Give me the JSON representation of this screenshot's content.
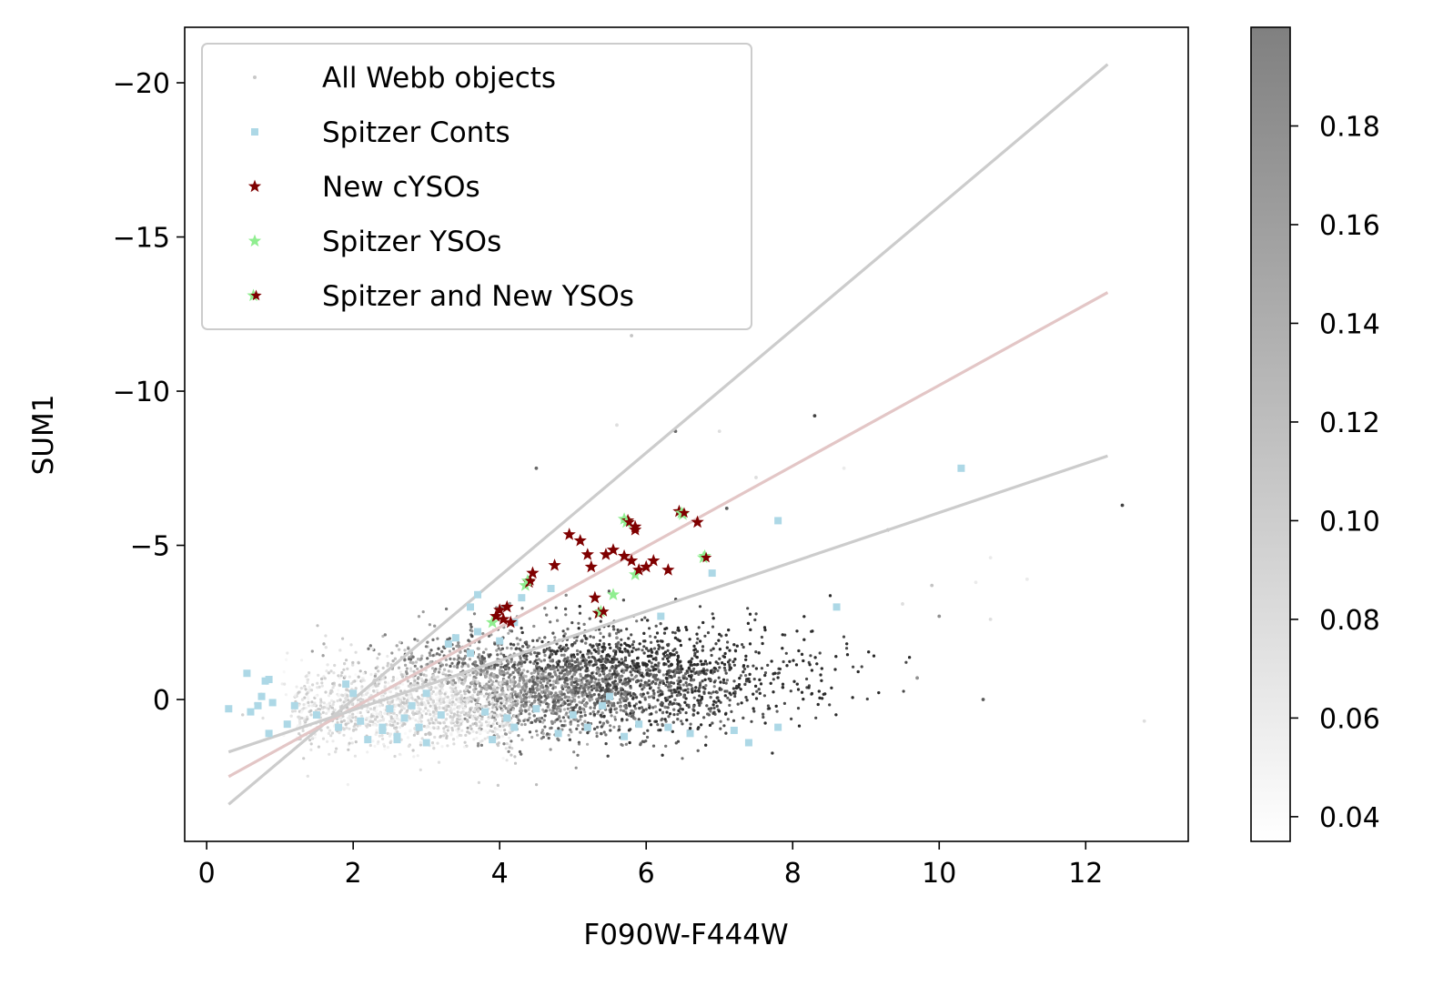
{
  "chart_data": {
    "type": "scatter",
    "xlabel": "F090W-F444W",
    "ylabel": "SUM1",
    "xlim": [
      -0.3,
      13.4
    ],
    "ylim": [
      4.6,
      -21.8
    ],
    "y_inverted": true,
    "xticks": [
      0,
      2,
      4,
      6,
      8,
      10,
      12
    ],
    "yticks": [
      -20,
      -15,
      -10,
      -5,
      0
    ],
    "grid": false,
    "legend_position": "upper-left",
    "colorbar": {
      "label": "",
      "range": [
        0.035,
        0.2
      ],
      "ticks": [
        0.04,
        0.06,
        0.08,
        0.1,
        0.12,
        0.14,
        0.16,
        0.18
      ],
      "tick_labels": [
        "0.04",
        "0.06",
        "0.08",
        "0.10",
        "0.12",
        "0.14",
        "0.16",
        "0.18"
      ],
      "colormap": "greys"
    },
    "legend": [
      {
        "label": "All Webb objects",
        "marker": "dot",
        "color": "#c8c8c8"
      },
      {
        "label": "Spitzer Conts",
        "marker": "square",
        "color": "#add8e6"
      },
      {
        "label": "New cYSOs",
        "marker": "star",
        "color": "#7f0000"
      },
      {
        "label": "Spitzer YSOs",
        "marker": "star",
        "color": "#90ee90"
      },
      {
        "label": "Spitzer and New YSOs",
        "marker": "star-dual",
        "color": "#7f0000",
        "color2": "#90ee90"
      }
    ],
    "lines": [
      {
        "color": "#cccccc",
        "x": [
          0.3,
          12.3
        ],
        "y": [
          3.4,
          -20.6
        ]
      },
      {
        "color": "#e3c6c6",
        "x": [
          0.3,
          12.3
        ],
        "y": [
          2.5,
          -13.2
        ]
      },
      {
        "color": "#cccccc",
        "x": [
          0.3,
          12.3
        ],
        "y": [
          1.7,
          -7.9
        ]
      }
    ],
    "webb_cloud": {
      "description_of_distribution": "dense cloud centered near x 3-7, y -2 to 1",
      "sample_outliers": [
        {
          "x": 5.8,
          "y": -11.8,
          "c": 0.08
        },
        {
          "x": 5.6,
          "y": -8.9,
          "c": 0.06
        },
        {
          "x": 6.4,
          "y": -8.7,
          "c": 0.15
        },
        {
          "x": 7.0,
          "y": -8.7,
          "c": 0.06
        },
        {
          "x": 8.3,
          "y": -9.2,
          "c": 0.18
        },
        {
          "x": 4.5,
          "y": -7.5,
          "c": 0.15
        },
        {
          "x": 7.5,
          "y": -7.2,
          "c": 0.06
        },
        {
          "x": 8.7,
          "y": -7.5,
          "c": 0.05
        },
        {
          "x": 12.5,
          "y": -6.3,
          "c": 0.18
        },
        {
          "x": 9.3,
          "y": -5.5,
          "c": 0.12
        },
        {
          "x": 10.7,
          "y": -4.6,
          "c": 0.05
        },
        {
          "x": 11.2,
          "y": -3.9,
          "c": 0.05
        },
        {
          "x": 10.5,
          "y": -3.8,
          "c": 0.05
        },
        {
          "x": 9.9,
          "y": -3.7,
          "c": 0.08
        },
        {
          "x": 9.5,
          "y": -3.1,
          "c": 0.06
        },
        {
          "x": 10.0,
          "y": -2.7,
          "c": 0.12
        },
        {
          "x": 10.7,
          "y": -2.6,
          "c": 0.06
        },
        {
          "x": 12.8,
          "y": 0.7,
          "c": 0.06
        },
        {
          "x": 10.6,
          "y": 0.0,
          "c": 0.16
        },
        {
          "x": 9.7,
          "y": -0.7,
          "c": 0.12
        },
        {
          "x": 7.1,
          "y": -6.2,
          "c": 0.16
        },
        {
          "x": 5.6,
          "y": -2.0,
          "c": 0.12
        }
      ]
    },
    "spitzer_conts": [
      {
        "x": 0.3,
        "y": 0.3
      },
      {
        "x": 0.55,
        "y": -0.85
      },
      {
        "x": 0.6,
        "y": 0.4
      },
      {
        "x": 0.7,
        "y": 0.2
      },
      {
        "x": 0.75,
        "y": -0.1
      },
      {
        "x": 0.8,
        "y": -0.6
      },
      {
        "x": 0.85,
        "y": -0.65
      },
      {
        "x": 0.85,
        "y": 1.1
      },
      {
        "x": 0.9,
        "y": 0.1
      },
      {
        "x": 1.2,
        "y": 0.2
      },
      {
        "x": 1.5,
        "y": 0.5
      },
      {
        "x": 1.8,
        "y": 0.9
      },
      {
        "x": 1.9,
        "y": -0.5
      },
      {
        "x": 2.0,
        "y": -0.2
      },
      {
        "x": 2.1,
        "y": 0.7
      },
      {
        "x": 2.2,
        "y": 1.3
      },
      {
        "x": 2.4,
        "y": 0.9
      },
      {
        "x": 2.5,
        "y": 0.3
      },
      {
        "x": 2.6,
        "y": 1.2
      },
      {
        "x": 2.7,
        "y": 0.6
      },
      {
        "x": 2.8,
        "y": 0.2
      },
      {
        "x": 2.9,
        "y": 0.9
      },
      {
        "x": 3.0,
        "y": -0.2
      },
      {
        "x": 3.0,
        "y": 1.4
      },
      {
        "x": 3.2,
        "y": 0.5
      },
      {
        "x": 3.3,
        "y": -1.8
      },
      {
        "x": 3.4,
        "y": -2.0
      },
      {
        "x": 3.6,
        "y": -1.5
      },
      {
        "x": 3.6,
        "y": -3.0
      },
      {
        "x": 3.7,
        "y": -2.2
      },
      {
        "x": 3.7,
        "y": -3.4
      },
      {
        "x": 3.8,
        "y": 0.4
      },
      {
        "x": 3.9,
        "y": 1.3
      },
      {
        "x": 4.0,
        "y": -1.9
      },
      {
        "x": 4.1,
        "y": 0.6
      },
      {
        "x": 4.2,
        "y": -2.5
      },
      {
        "x": 4.2,
        "y": 0.9
      },
      {
        "x": 4.3,
        "y": -3.3
      },
      {
        "x": 4.5,
        "y": 0.3
      },
      {
        "x": 4.7,
        "y": -3.6
      },
      {
        "x": 4.8,
        "y": 1.1
      },
      {
        "x": 5.0,
        "y": 0.5
      },
      {
        "x": 5.2,
        "y": 0.9
      },
      {
        "x": 5.4,
        "y": 0.2
      },
      {
        "x": 5.5,
        "y": -0.1
      },
      {
        "x": 5.7,
        "y": 1.2
      },
      {
        "x": 5.9,
        "y": 0.8
      },
      {
        "x": 6.2,
        "y": -2.7
      },
      {
        "x": 6.3,
        "y": 0.9
      },
      {
        "x": 6.6,
        "y": 1.1
      },
      {
        "x": 6.9,
        "y": -4.1
      },
      {
        "x": 7.2,
        "y": 1.0
      },
      {
        "x": 7.4,
        "y": 1.4
      },
      {
        "x": 7.8,
        "y": 0.9
      },
      {
        "x": 7.8,
        "y": -5.8
      },
      {
        "x": 8.6,
        "y": -3.0
      },
      {
        "x": 10.3,
        "y": -7.5
      },
      {
        "x": 2.4,
        "y": 1.0
      },
      {
        "x": 2.6,
        "y": 1.3
      },
      {
        "x": 1.1,
        "y": 0.8
      }
    ],
    "new_cysos": [
      {
        "x": 3.95,
        "y": -2.7
      },
      {
        "x": 4.0,
        "y": -2.9
      },
      {
        "x": 4.1,
        "y": -3.0
      },
      {
        "x": 4.15,
        "y": -2.5
      },
      {
        "x": 4.4,
        "y": -3.8
      },
      {
        "x": 4.45,
        "y": -4.1
      },
      {
        "x": 4.75,
        "y": -4.35
      },
      {
        "x": 4.95,
        "y": -5.35
      },
      {
        "x": 5.1,
        "y": -5.15
      },
      {
        "x": 5.2,
        "y": -4.7
      },
      {
        "x": 5.25,
        "y": -4.3
      },
      {
        "x": 5.3,
        "y": -3.3
      },
      {
        "x": 5.35,
        "y": -2.8
      },
      {
        "x": 5.45,
        "y": -4.7
      },
      {
        "x": 5.55,
        "y": -4.85
      },
      {
        "x": 5.7,
        "y": -4.65
      },
      {
        "x": 5.75,
        "y": -5.8
      },
      {
        "x": 5.8,
        "y": -4.5
      },
      {
        "x": 5.85,
        "y": -5.6
      },
      {
        "x": 5.9,
        "y": -4.2
      },
      {
        "x": 6.0,
        "y": -4.3
      },
      {
        "x": 6.1,
        "y": -4.5
      },
      {
        "x": 6.3,
        "y": -4.2
      },
      {
        "x": 6.45,
        "y": -6.1
      },
      {
        "x": 6.7,
        "y": -5.75
      },
      {
        "x": 5.85,
        "y": -5.5
      },
      {
        "x": 4.05,
        "y": -2.6
      }
    ],
    "spitzer_ysos": [
      {
        "x": 3.9,
        "y": -2.5
      },
      {
        "x": 4.35,
        "y": -3.7
      },
      {
        "x": 5.35,
        "y": -2.8
      },
      {
        "x": 5.55,
        "y": -3.4
      },
      {
        "x": 5.7,
        "y": -5.85
      },
      {
        "x": 5.85,
        "y": -4.05
      },
      {
        "x": 6.8,
        "y": -4.65
      },
      {
        "x": 6.5,
        "y": -6.0
      }
    ],
    "spitzer_and_new_ysos": [
      {
        "x": 4.4,
        "y": -3.85
      },
      {
        "x": 5.75,
        "y": -5.75
      },
      {
        "x": 6.5,
        "y": -6.05
      },
      {
        "x": 6.8,
        "y": -4.6
      },
      {
        "x": 5.4,
        "y": -2.85
      }
    ]
  }
}
